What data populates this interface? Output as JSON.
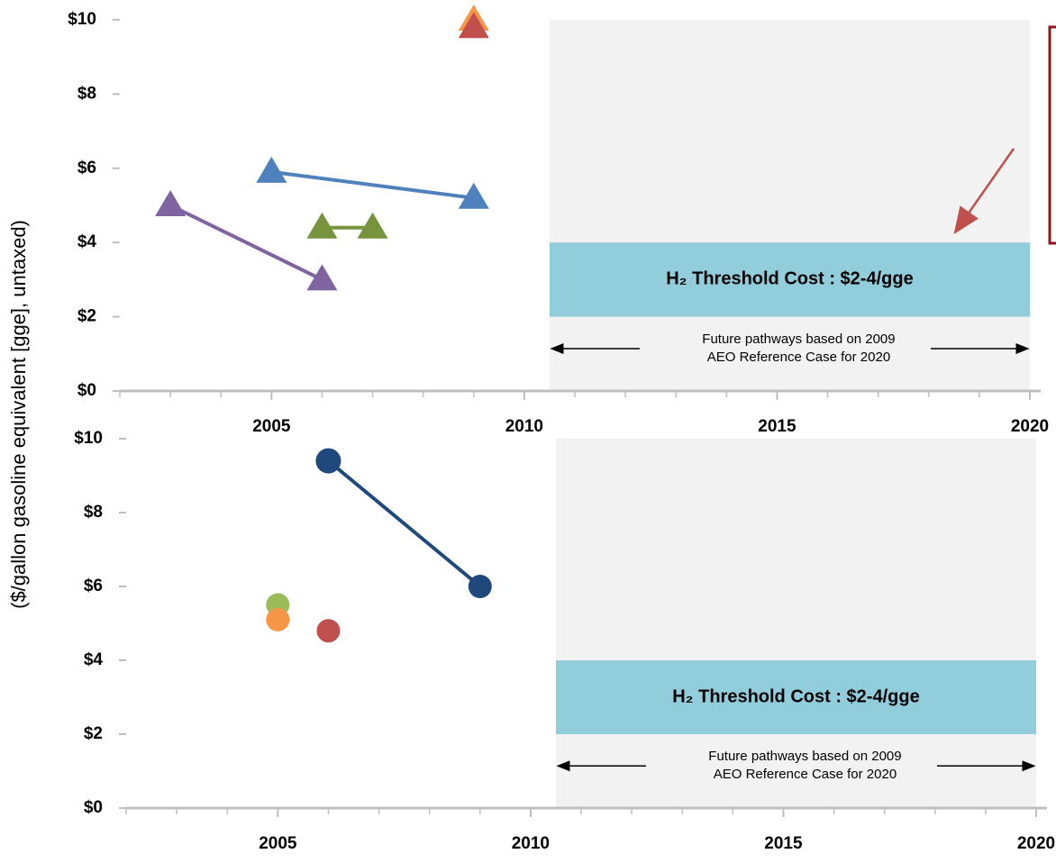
{
  "chart_data": [
    {
      "type": "line",
      "marker": "triangle",
      "ylabel": "($/gallon gasoline equivalent [gge], untaxed)",
      "xlim": [
        2002,
        2020
      ],
      "xticks": [
        2005,
        2010,
        2015,
        2020
      ],
      "ylim": [
        0,
        10
      ],
      "yticks": [
        {
          "value": 0,
          "label": "$0"
        },
        {
          "value": 2,
          "label": "$2"
        },
        {
          "value": 4,
          "label": "$4"
        },
        {
          "value": 6,
          "label": "$6"
        },
        {
          "value": 8,
          "label": "$8"
        },
        {
          "value": 10,
          "label": "$10"
        }
      ],
      "shaded_xlim": [
        2010.5,
        2020
      ],
      "band_ylim": [
        2,
        4
      ],
      "band_color": "#92cddc",
      "band_label": "H₂ Threshold Cost : $2-4/gge",
      "note": [
        "Future pathways based on 2009",
        "AEO Reference Case for 2020"
      ],
      "series": [
        {
          "color": "#8064a2",
          "x": [
            2003,
            2006
          ],
          "values": [
            5.0,
            3.0
          ]
        },
        {
          "color": "#4f81bd",
          "x": [
            2005,
            2009
          ],
          "values": [
            5.9,
            5.2
          ]
        },
        {
          "color": "#77933c",
          "x": [
            2006,
            2007
          ],
          "values": [
            4.4,
            4.4
          ]
        },
        {
          "color": "#f79646",
          "x": [
            2009
          ],
          "values": [
            10.0
          ]
        },
        {
          "color": "#c0504d",
          "x": [
            2009
          ],
          "values": [
            9.8
          ]
        }
      ]
    },
    {
      "type": "line",
      "marker": "circle",
      "xlim": [
        2002,
        2020
      ],
      "xticks": [
        2005,
        2010,
        2015,
        2020
      ],
      "ylim": [
        0,
        10
      ],
      "yticks": [
        {
          "value": 0,
          "label": "$0"
        },
        {
          "value": 2,
          "label": "$2"
        },
        {
          "value": 4,
          "label": "$4"
        },
        {
          "value": 6,
          "label": "$6"
        },
        {
          "value": 8,
          "label": "$8"
        },
        {
          "value": 10,
          "label": "$10"
        }
      ],
      "shaded_xlim": [
        2010.5,
        2020
      ],
      "band_ylim": [
        2,
        4
      ],
      "band_color": "#92cddc",
      "band_label": "H₂ Threshold Cost : $2-4/gge",
      "note": [
        "Future pathways based on 2009",
        "AEO Reference Case for 2020"
      ],
      "series": [
        {
          "color": "#1f497d",
          "x": [
            2006,
            2009
          ],
          "values": [
            9.4,
            6.0
          ]
        },
        {
          "color": "#9bbb59",
          "x": [
            2005
          ],
          "values": [
            5.5
          ]
        },
        {
          "color": "#f79646",
          "x": [
            2005
          ],
          "values": [
            5.1
          ]
        },
        {
          "color": "#c0504d",
          "x": [
            2006
          ],
          "values": [
            4.8
          ]
        }
      ]
    }
  ]
}
